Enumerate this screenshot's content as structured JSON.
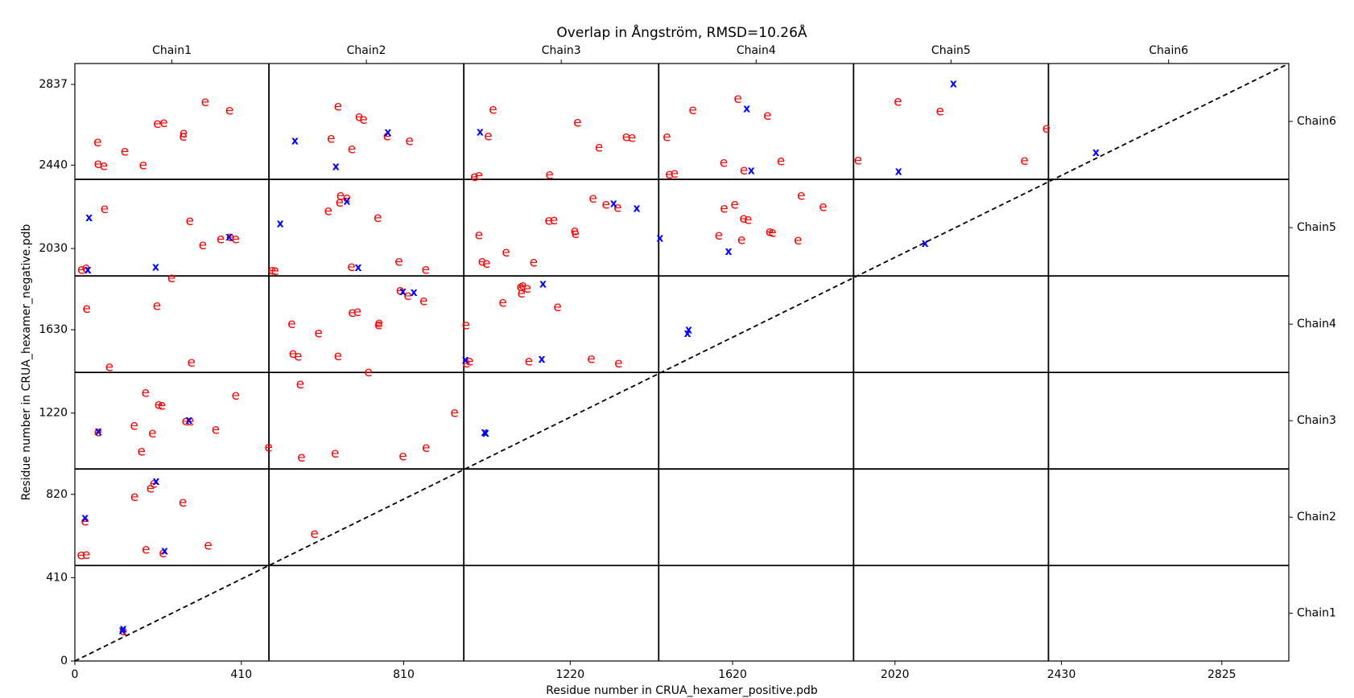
{
  "chart_data": {
    "type": "scatter",
    "title": "Overlap in Ångström, RMSD=10.26Å",
    "xlabel": "Residue number in CRUA_hexamer_positive.pdb",
    "ylabel": "Residue number in CRUA_hexamer_negative.pdb",
    "xlim": [
      0,
      2990
    ],
    "ylim": [
      0,
      2940
    ],
    "xticks": [
      0,
      410,
      810,
      1220,
      1620,
      2020,
      2430,
      2825
    ],
    "yticks": [
      0,
      410,
      820,
      1220,
      1630,
      2030,
      2440,
      2837
    ],
    "chain_boundaries": [
      0,
      478,
      958,
      1438,
      1918,
      2398,
      2990
    ],
    "y_chain_boundaries": [
      0,
      470,
      945,
      1420,
      1895,
      2370,
      2940
    ],
    "top_chain_labels": [
      "Chain1",
      "Chain2",
      "Chain3",
      "Chain4",
      "Chain5",
      "Chain6"
    ],
    "right_chain_labels": [
      "Chain1",
      "Chain2",
      "Chain3",
      "Chain4",
      "Chain5",
      "Chain6"
    ],
    "diagonal": "dashed",
    "series": [
      {
        "marker": "e",
        "color": "#ff0000",
        "points": [
          [
            119,
            147
          ],
          [
            15,
            520
          ],
          [
            28,
            523
          ],
          [
            175,
            548
          ],
          [
            217,
            530
          ],
          [
            328,
            568
          ],
          [
            186,
            848
          ],
          [
            194,
            873
          ],
          [
            147,
            808
          ],
          [
            266,
            779
          ],
          [
            25,
            686
          ],
          [
            590,
            625
          ],
          [
            57,
            1125
          ],
          [
            146,
            1157
          ],
          [
            191,
            1120
          ],
          [
            164,
            1031
          ],
          [
            174,
            1319
          ],
          [
            206,
            1261
          ],
          [
            214,
            1256
          ],
          [
            284,
            1180
          ],
          [
            347,
            1138
          ],
          [
            396,
            1306
          ],
          [
            273,
            1180
          ],
          [
            477,
            1051
          ],
          [
            558,
            1001
          ],
          [
            641,
            1020
          ],
          [
            808,
            1008
          ],
          [
            865,
            1049
          ],
          [
            935,
            1221
          ],
          [
            555,
            1361
          ],
          [
            723,
            1420
          ],
          [
            29,
            1733
          ],
          [
            202,
            1746
          ],
          [
            85,
            1446
          ],
          [
            287,
            1469
          ],
          [
            534,
            1658
          ],
          [
            537,
            1511
          ],
          [
            550,
            1497
          ],
          [
            600,
            1613
          ],
          [
            648,
            1500
          ],
          [
            683,
            1713
          ],
          [
            696,
            1717
          ],
          [
            748,
            1653
          ],
          [
            749,
            1661
          ],
          [
            801,
            1822
          ],
          [
            820,
            1797
          ],
          [
            859,
            1771
          ],
          [
            963,
            1652
          ],
          [
            972,
            1473
          ],
          [
            964,
            1465
          ],
          [
            1098,
            1839
          ],
          [
            1100,
            1808
          ],
          [
            1114,
            1833
          ],
          [
            1103,
            1845
          ],
          [
            1189,
            1742
          ],
          [
            1272,
            1485
          ],
          [
            1339,
            1464
          ],
          [
            1118,
            1474
          ],
          [
            1054,
            1762
          ],
          [
            16,
            1925
          ],
          [
            27,
            1933
          ],
          [
            73,
            2223
          ],
          [
            238,
            1883
          ],
          [
            283,
            2165
          ],
          [
            315,
            2046
          ],
          [
            359,
            2076
          ],
          [
            383,
            2085
          ],
          [
            396,
            2075
          ],
          [
            486,
            1921
          ],
          [
            493,
            1919
          ],
          [
            624,
            2213
          ],
          [
            654,
            2290
          ],
          [
            652,
            2256
          ],
          [
            670,
            2277
          ],
          [
            681,
            1939
          ],
          [
            746,
            2181
          ],
          [
            798,
            1964
          ],
          [
            864,
            1925
          ],
          [
            995,
            2096
          ],
          [
            1003,
            1965
          ],
          [
            1014,
            1955
          ],
          [
            1062,
            2010
          ],
          [
            1130,
            1960
          ],
          [
            1167,
            2167
          ],
          [
            1180,
            2169
          ],
          [
            1231,
            2115
          ],
          [
            1233,
            2102
          ],
          [
            1276,
            2275
          ],
          [
            1308,
            2245
          ],
          [
            1337,
            2230
          ],
          [
            1599,
            2226
          ],
          [
            1625,
            2245
          ],
          [
            1647,
            2177
          ],
          [
            1658,
            2170
          ],
          [
            1711,
            2111
          ],
          [
            1718,
            2108
          ],
          [
            1781,
            2069
          ],
          [
            1789,
            2289
          ],
          [
            1843,
            2234
          ],
          [
            1586,
            2094
          ],
          [
            1642,
            2071
          ],
          [
            56,
            2553
          ],
          [
            57,
            2446
          ],
          [
            71,
            2436
          ],
          [
            123,
            2506
          ],
          [
            168,
            2439
          ],
          [
            203,
            2643
          ],
          [
            219,
            2648
          ],
          [
            267,
            2580
          ],
          [
            268,
            2595
          ],
          [
            321,
            2751
          ],
          [
            381,
            2708
          ],
          [
            648,
            2729
          ],
          [
            631,
            2570
          ],
          [
            682,
            2518
          ],
          [
            700,
            2676
          ],
          [
            711,
            2663
          ],
          [
            769,
            2582
          ],
          [
            824,
            2558
          ],
          [
            995,
            2388
          ],
          [
            984,
            2383
          ],
          [
            1018,
            2581
          ],
          [
            1030,
            2712
          ],
          [
            1169,
            2391
          ],
          [
            1238,
            2649
          ],
          [
            1291,
            2527
          ],
          [
            1358,
            2578
          ],
          [
            1372,
            2573
          ],
          [
            1458,
            2577
          ],
          [
            1464,
            2393
          ],
          [
            1477,
            2397
          ],
          [
            1522,
            2711
          ],
          [
            1598,
            2452
          ],
          [
            1633,
            2766
          ],
          [
            1648,
            2414
          ],
          [
            1706,
            2682
          ],
          [
            1739,
            2459
          ],
          [
            1929,
            2463
          ],
          [
            2027,
            2752
          ],
          [
            2131,
            2705
          ],
          [
            2339,
            2462
          ],
          [
            2393,
            2620
          ]
        ]
      },
      {
        "marker": "x",
        "color": "#0000ff",
        "points": [
          [
            117,
            148
          ],
          [
            119,
            157
          ],
          [
            25,
            703
          ],
          [
            200,
            883
          ],
          [
            221,
            540
          ],
          [
            281,
            1183
          ],
          [
            58,
            1127
          ],
          [
            1009,
            1124
          ],
          [
            1012,
            1120
          ],
          [
            962,
            1480
          ],
          [
            1150,
            1484
          ],
          [
            1153,
            1854
          ],
          [
            808,
            1817
          ],
          [
            835,
            1812
          ],
          [
            1512,
            1629
          ],
          [
            1509,
            1611
          ],
          [
            32,
            1923
          ],
          [
            35,
            2181
          ],
          [
            199,
            1936
          ],
          [
            380,
            2085
          ],
          [
            506,
            2151
          ],
          [
            698,
            1935
          ],
          [
            670,
            2262
          ],
          [
            1327,
            2250
          ],
          [
            1384,
            2225
          ],
          [
            1441,
            2080
          ],
          [
            1610,
            2015
          ],
          [
            542,
            2559
          ],
          [
            643,
            2431
          ],
          [
            771,
            2599
          ],
          [
            998,
            2601
          ],
          [
            1655,
            2716
          ],
          [
            1666,
            2412
          ],
          [
            2029,
            2408
          ],
          [
            2094,
            2054
          ],
          [
            2164,
            2839
          ],
          [
            2515,
            2501
          ]
        ]
      }
    ]
  }
}
